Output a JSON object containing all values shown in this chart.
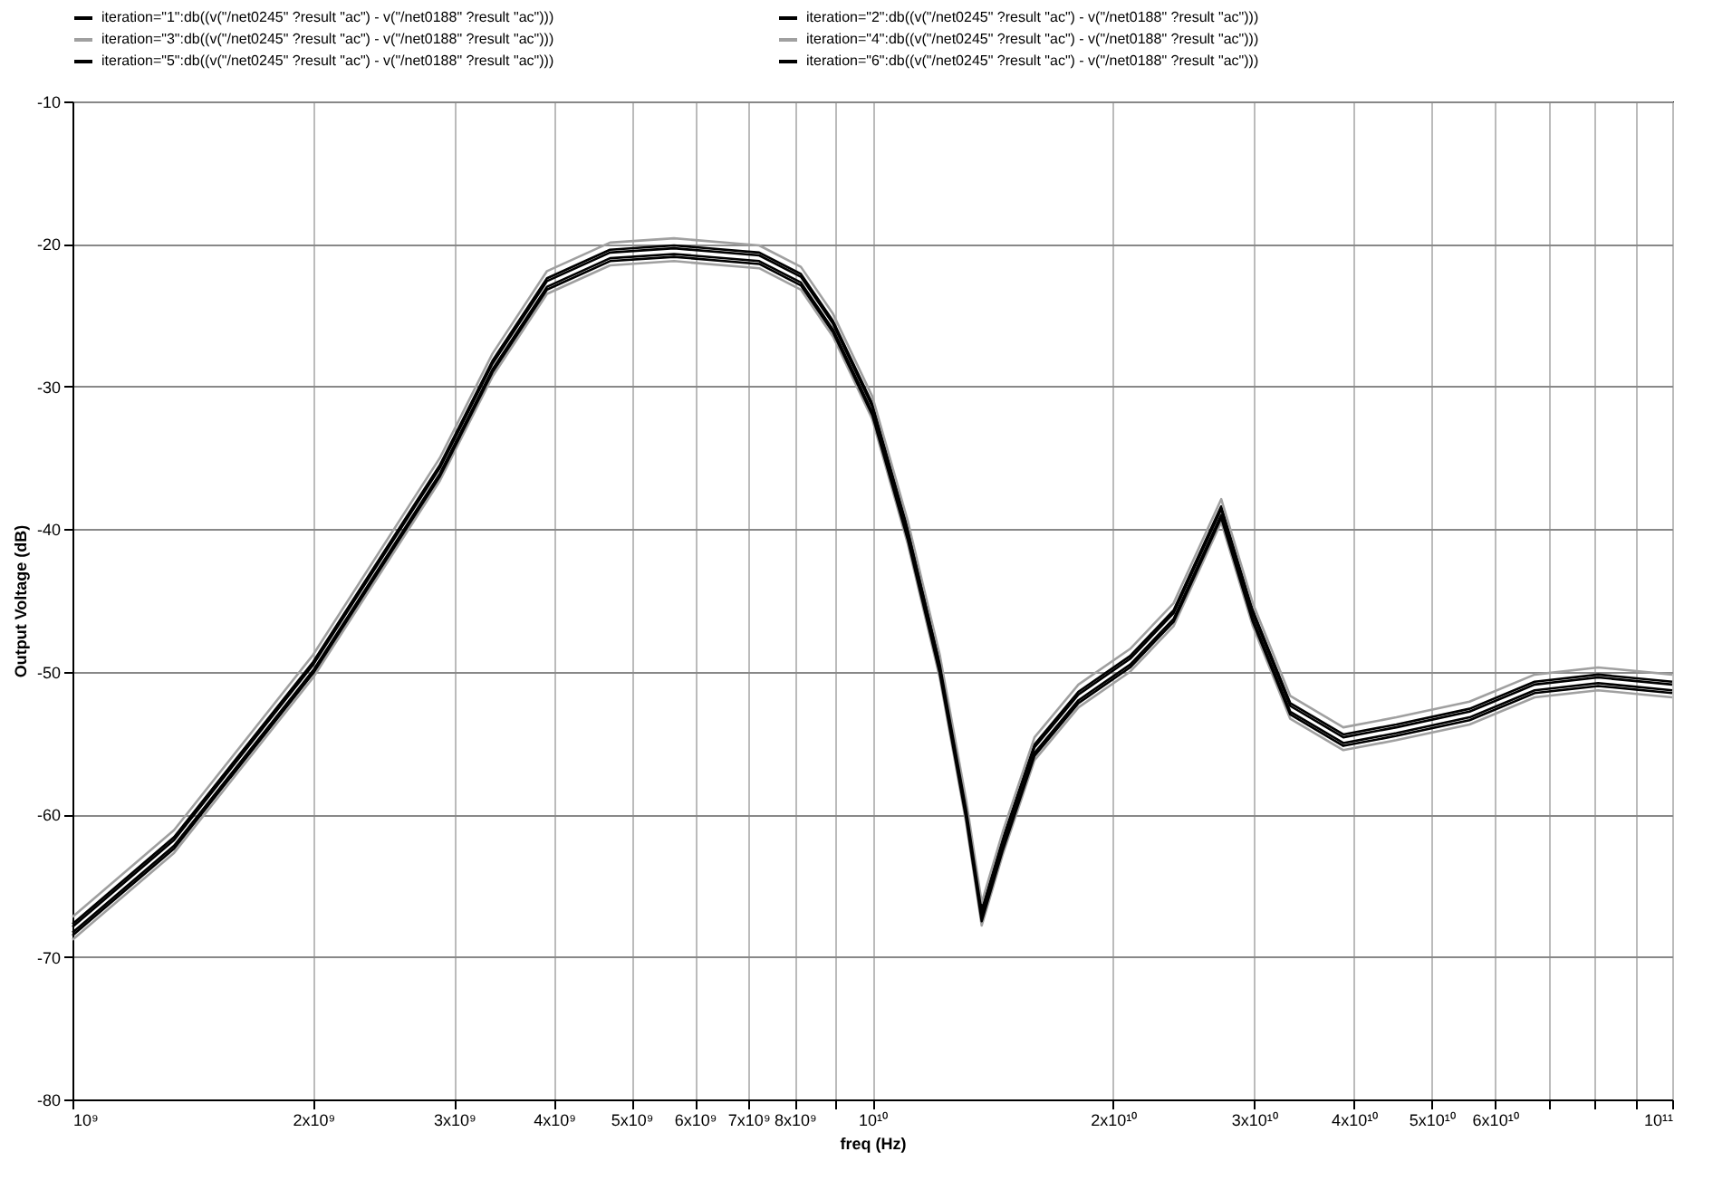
{
  "chart_data": {
    "type": "line",
    "xlabel": "freq (Hz)",
    "ylabel": "Output Voltage (dB)",
    "log": "x",
    "grid": true,
    "legend": "top",
    "line_style": "solid",
    "xlim": [
      1000000000,
      100000000000
    ],
    "ylim": [
      -80,
      -10
    ],
    "yticks": [
      -80,
      -70,
      -60,
      -50,
      -40,
      -30,
      -20,
      -10
    ],
    "xticks": [
      {
        "value": 1000000000,
        "label": "10⁹"
      },
      {
        "value": 2000000000,
        "label": "2x10⁹"
      },
      {
        "value": 3000000000,
        "label": "3x10⁹"
      },
      {
        "value": 4000000000,
        "label": "4x10⁹"
      },
      {
        "value": 5000000000,
        "label": "5x10⁹"
      },
      {
        "value": 6000000000,
        "label": "6x10⁹"
      },
      {
        "value": 7000000000,
        "label": "7x10⁹"
      },
      {
        "value": 8000000000,
        "label": "8x10⁹"
      },
      {
        "value": 9000000000,
        "label": null
      },
      {
        "value": 10000000000,
        "label": "10¹⁰"
      },
      {
        "value": 20000000000,
        "label": "2x10¹⁰"
      },
      {
        "value": 30000000000,
        "label": "3x10¹⁰"
      },
      {
        "value": 40000000000,
        "label": "4x10¹⁰"
      },
      {
        "value": 50000000000,
        "label": "5x10¹⁰"
      },
      {
        "value": 60000000000,
        "label": "6x10¹⁰"
      },
      {
        "value": 70000000000,
        "label": null
      },
      {
        "value": 80000000000,
        "label": null
      },
      {
        "value": 90000000000,
        "label": null
      },
      {
        "value": 100000000000,
        "label": "10¹¹"
      }
    ],
    "x": [
      1000000000,
      1340000000,
      2000000000,
      2880000000,
      3350000000,
      3920000000,
      4700000000,
      5650000000,
      7220000000,
      8140000000,
      8930000000,
      10000000000,
      11070000000,
      12140000000,
      13100000000,
      13700000000,
      14560000000,
      15950000000,
      18100000000,
      21000000000,
      23800000000,
      27300000000,
      29900000000,
      33300000000,
      38800000000,
      45200000000,
      55800000000,
      67300000000,
      80800000000,
      100000000000
    ],
    "series": [
      {
        "name": "iteration=\"1\":db((v(\"/net0245\" ?result \"ac\") - v(\"/net0188\" ?result \"ac\")))",
        "color": "#000000",
        "values": [
          -67.7,
          -61.6,
          -49.3,
          -35.5,
          -28.2,
          -22.4,
          -20.4,
          -20.1,
          -20.6,
          -22.1,
          -25.4,
          -31.2,
          -39.9,
          -49.3,
          -59.5,
          -66.7,
          -61.7,
          -55.1,
          -51.4,
          -48.9,
          -45.7,
          -38.4,
          -45.7,
          -52.2,
          -54.4,
          -53.7,
          -52.6,
          -50.7,
          -50.2,
          -50.7
        ]
      },
      {
        "name": "iteration=\"2\":db((v(\"/net0245\" ?result \"ac\") - v(\"/net0188\" ?result \"ac\")))",
        "color": "#000000",
        "values": [
          -68.3,
          -62.2,
          -49.9,
          -36.1,
          -28.8,
          -23,
          -21,
          -20.7,
          -21.2,
          -22.7,
          -26,
          -31.8,
          -40.5,
          -49.9,
          -60.1,
          -67.3,
          -62.3,
          -55.7,
          -52,
          -49.5,
          -46.3,
          -39,
          -46.3,
          -52.8,
          -55,
          -54.3,
          -53.2,
          -51.3,
          -50.8,
          -51.3
        ]
      },
      {
        "name": "iteration=\"3\":db((v(\"/net0245\" ?result \"ac\") - v(\"/net0188\" ?result \"ac\")))",
        "color": "#a0a0a0",
        "values": [
          -67.2,
          -61.1,
          -48.8,
          -35,
          -27.7,
          -21.9,
          -19.9,
          -19.6,
          -20.1,
          -21.6,
          -24.9,
          -30.7,
          -39.4,
          -48.8,
          -59,
          -66.2,
          -61.2,
          -54.6,
          -50.9,
          -48.4,
          -45.2,
          -37.9,
          -45.2,
          -51.7,
          -53.9,
          -53.2,
          -52.1,
          -50.2,
          -49.7,
          -50.2
        ]
      },
      {
        "name": "iteration=\"4\":db((v(\"/net0245\" ?result \"ac\") - v(\"/net0188\" ?result \"ac\")))",
        "color": "#a0a0a0",
        "values": [
          -68.8,
          -62.7,
          -50.4,
          -36.6,
          -29.3,
          -23.5,
          -21.5,
          -21.2,
          -21.7,
          -23.2,
          -26.5,
          -32.3,
          -41,
          -50.4,
          -60.6,
          -67.8,
          -62.8,
          -56.2,
          -52.5,
          -50,
          -46.8,
          -39.5,
          -46.8,
          -53.3,
          -55.5,
          -54.8,
          -53.7,
          -51.8,
          -51.3,
          -51.8
        ]
      },
      {
        "name": "iteration=\"5\":db((v(\"/net0245\" ?result \"ac\") - v(\"/net0188\" ?result \"ac\")))",
        "color": "#000000",
        "values": [
          -67.9,
          -61.8,
          -49.5,
          -35.7,
          -28.4,
          -22.6,
          -20.6,
          -20.3,
          -20.8,
          -22.3,
          -25.6,
          -31.4,
          -40.1,
          -49.5,
          -59.7,
          -66.9,
          -61.9,
          -55.3,
          -51.6,
          -49.1,
          -45.9,
          -38.6,
          -45.9,
          -52.4,
          -54.6,
          -53.9,
          -52.8,
          -50.9,
          -50.4,
          -50.9
        ]
      },
      {
        "name": "iteration=\"6\":db((v(\"/net0245\" ?result \"ac\") - v(\"/net0188\" ?result \"ac\")))",
        "color": "#000000",
        "values": [
          -68.5,
          -62.4,
          -50.1,
          -36.3,
          -29,
          -23.2,
          -21.2,
          -20.9,
          -21.4,
          -22.9,
          -26.2,
          -32,
          -40.7,
          -50.1,
          -60.3,
          -67.5,
          -62.5,
          -55.9,
          -52.2,
          -49.7,
          -46.5,
          -39.2,
          -46.5,
          -53,
          -55.2,
          -54.5,
          -53.4,
          -51.5,
          -51,
          -51.5
        ]
      }
    ]
  }
}
